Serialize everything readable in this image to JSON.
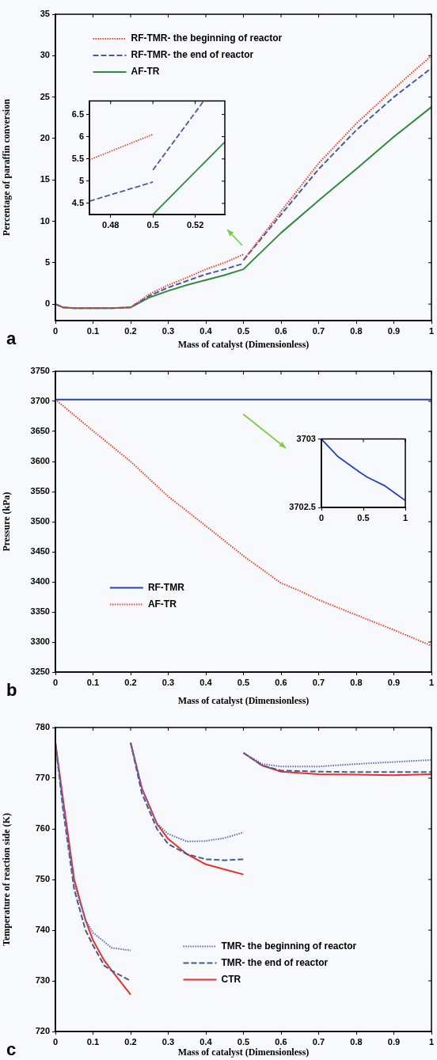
{
  "chart_data": [
    {
      "type": "line",
      "xlabel": "Mass of catalyst (Dimensionless)",
      "ylabel": "Percentage of paraffin conversion",
      "xlim": [
        0,
        1
      ],
      "xticks": [
        0,
        0.1,
        0.2,
        0.3,
        0.4,
        0.5,
        0.6,
        0.7,
        0.8,
        0.9,
        1
      ],
      "ylim": [
        -2,
        35
      ],
      "yticks": [
        0,
        5,
        10,
        15,
        20,
        25,
        30,
        35
      ],
      "legend": "top left",
      "marker": "none",
      "annotations": [
        "a"
      ],
      "series": [
        {
          "name": "RF-TMR- the beginning of reactor",
          "color": "#e8462a",
          "line_style": "dotted",
          "x": [
            0,
            0.02,
            0.05,
            0.1,
            0.15,
            0.2,
            0.25,
            0.3,
            0.35,
            0.4,
            0.45,
            0.5,
            null,
            0.5,
            0.6,
            0.7,
            0.8,
            0.9,
            1
          ],
          "values": [
            0,
            -0.4,
            -0.5,
            -0.5,
            -0.5,
            -0.4,
            1.2,
            2.3,
            3.2,
            4.2,
            5.0,
            6.0,
            null,
            5.3,
            11.2,
            17,
            21.8,
            26,
            30
          ]
        },
        {
          "name": "RF-TMR- the end of reactor",
          "color": "#4b5aa8",
          "line_style": "dashed",
          "x": [
            0,
            0.02,
            0.05,
            0.1,
            0.15,
            0.2,
            0.25,
            0.3,
            0.35,
            0.4,
            0.45,
            0.5,
            null,
            0.5,
            0.6,
            0.7,
            0.8,
            0.9,
            1
          ],
          "values": [
            0,
            -0.4,
            -0.5,
            -0.5,
            -0.5,
            -0.4,
            1.0,
            2.0,
            2.8,
            3.6,
            4.2,
            4.9,
            null,
            5.3,
            10.8,
            16.3,
            21,
            25,
            28.5
          ]
        },
        {
          "name": "AF-TR",
          "color": "#2e8b3e",
          "line_style": "solid",
          "x": [
            0,
            0.02,
            0.05,
            0.1,
            0.15,
            0.2,
            0.25,
            0.3,
            0.35,
            0.4,
            0.45,
            0.5,
            0.6,
            0.7,
            0.8,
            0.9,
            1
          ],
          "values": [
            0,
            -0.4,
            -0.5,
            -0.5,
            -0.5,
            -0.4,
            0.8,
            1.6,
            2.3,
            2.9,
            3.5,
            4.2,
            8.6,
            12.5,
            16.3,
            20.2,
            23.8
          ]
        }
      ]
    },
    {
      "type": "line",
      "xlim": [
        0.47,
        0.534
      ],
      "xticks": [
        0.48,
        0.5,
        0.52
      ],
      "ylim": [
        4.25,
        6.8
      ],
      "yticks": [
        4.5,
        5,
        5.5,
        6,
        6.5
      ],
      "marker": "none",
      "series": [
        {
          "color": "#e8462a",
          "line_style": "dotted",
          "x": [
            0.47,
            0.5
          ],
          "values": [
            5.48,
            6.05
          ]
        },
        {
          "color": "#4b5aa8",
          "line_style": "dashed",
          "x": [
            0.47,
            0.5,
            null,
            0.5,
            0.524
          ],
          "values": [
            4.55,
            4.98,
            null,
            5.25,
            6.8
          ]
        },
        {
          "color": "#2e8b3e",
          "line_style": "solid",
          "x": [
            0.5,
            0.534
          ],
          "values": [
            4.25,
            5.88
          ]
        }
      ]
    },
    {
      "type": "line",
      "xlabel": "Mass of catalyst (Dimensionless)",
      "ylabel": "Pressure (kPa)",
      "xlim": [
        0,
        1
      ],
      "xticks": [
        0,
        0.1,
        0.2,
        0.3,
        0.4,
        0.5,
        0.6,
        0.7,
        0.8,
        0.9,
        1
      ],
      "ylim": [
        3250,
        3750
      ],
      "yticks": [
        3250,
        3300,
        3350,
        3400,
        3450,
        3500,
        3550,
        3600,
        3650,
        3700,
        3750
      ],
      "legend": "bottom left",
      "marker": "none",
      "annotations": [
        "b"
      ],
      "series": [
        {
          "name": "RF-TMR",
          "color": "#2a3fbf",
          "line_style": "solid",
          "x": [
            0,
            1
          ],
          "values": [
            3703,
            3703
          ]
        },
        {
          "name": "AF-TR",
          "color": "#e8462a",
          "line_style": "dotted",
          "x": [
            0,
            0.1,
            0.2,
            0.3,
            0.4,
            0.5,
            0.6,
            0.65,
            0.7,
            0.8,
            0.9,
            1
          ],
          "values": [
            3703,
            3651,
            3600,
            3542,
            3493,
            3443,
            3398,
            3385,
            3370,
            3345,
            3320,
            3294
          ]
        }
      ]
    },
    {
      "type": "line",
      "xlim": [
        0,
        1
      ],
      "xticks": [
        0,
        0.5,
        1
      ],
      "ylim": [
        3702.5,
        3703
      ],
      "yticks": [
        3702.5,
        3703
      ],
      "marker": "none",
      "series": [
        {
          "color": "#2a3fbf",
          "line_style": "solid",
          "x": [
            0,
            0.2,
            0.45,
            0.55,
            0.75,
            1
          ],
          "values": [
            3703,
            3702.87,
            3702.76,
            3702.72,
            3702.66,
            3702.55
          ]
        }
      ]
    },
    {
      "type": "line",
      "xlabel": "Mass of catalyst (Dimensionless)",
      "ylabel": "Temperature of reaction side (K)",
      "xlim": [
        0,
        1
      ],
      "xticks": [
        0,
        0.1,
        0.2,
        0.3,
        0.4,
        0.5,
        0.6,
        0.7,
        0.8,
        0.9,
        1
      ],
      "ylim": [
        720,
        780
      ],
      "yticks": [
        720,
        730,
        740,
        750,
        760,
        770,
        780
      ],
      "legend": "bottom",
      "marker": "none",
      "annotations": [
        "c"
      ],
      "series": [
        {
          "name": "TMR- the beginning of reactor",
          "color": "#5a6ab8",
          "line_style": "dotted",
          "x": [
            0,
            0.02,
            0.05,
            0.08,
            0.1,
            0.15,
            0.2,
            null,
            0.2,
            0.23,
            0.27,
            0.3,
            0.35,
            0.4,
            0.45,
            0.5,
            null,
            0.5,
            0.55,
            0.6,
            0.7,
            0.8,
            0.9,
            1
          ],
          "values": [
            777,
            765,
            749,
            742,
            739.5,
            736.5,
            736,
            null,
            777,
            768,
            761,
            759,
            757.5,
            757.6,
            758.2,
            759.3,
            null,
            775,
            772.8,
            772.3,
            772.3,
            772.8,
            773.2,
            773.6
          ]
        },
        {
          "name": "TMR- the end of reactor",
          "color": "#4a5a8a",
          "line_style": "dashed",
          "x": [
            0,
            0.02,
            0.05,
            0.08,
            0.1,
            0.13,
            0.15,
            0.2,
            null,
            0.2,
            0.23,
            0.27,
            0.3,
            0.35,
            0.4,
            0.45,
            0.5,
            null,
            0.5,
            0.55,
            0.6,
            0.7,
            0.8,
            1
          ],
          "values": [
            777,
            764,
            748,
            740,
            737,
            733,
            732,
            730,
            null,
            777,
            767,
            760,
            757,
            755,
            754,
            753.8,
            754,
            null,
            775,
            772.5,
            771.5,
            771.3,
            771.2,
            771.2
          ]
        },
        {
          "name": "CTR",
          "color": "#e8302a",
          "line_style": "solid",
          "x": [
            0,
            0.02,
            0.05,
            0.08,
            0.1,
            0.13,
            0.15,
            0.2,
            null,
            0.2,
            0.23,
            0.27,
            0.3,
            0.35,
            0.4,
            0.45,
            0.5,
            null,
            0.5,
            0.55,
            0.6,
            0.7,
            0.8,
            0.9,
            1
          ],
          "values": [
            777,
            766,
            750,
            742,
            738,
            734,
            732,
            727.3,
            null,
            777,
            768,
            761,
            758,
            755,
            753,
            752,
            751,
            null,
            775,
            772.5,
            771.3,
            770.8,
            770.7,
            770.6,
            770.8
          ]
        }
      ]
    }
  ]
}
